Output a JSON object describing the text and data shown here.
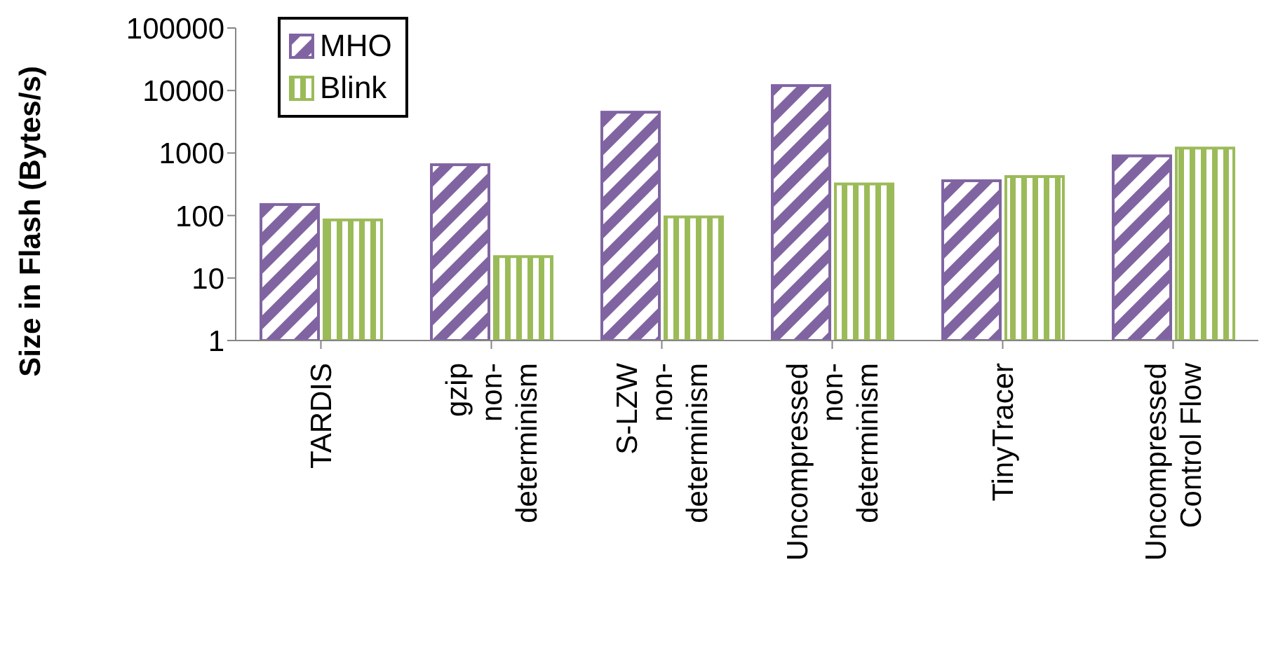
{
  "chart_data": {
    "type": "bar",
    "ylabel": "Size in Flash (Bytes/s)",
    "log": true,
    "ylim": [
      1,
      100000
    ],
    "yticks": [
      1,
      10,
      100,
      1000,
      10000,
      100000
    ],
    "grid": false,
    "legend": "top left",
    "categories": [
      "TARDIS",
      "gzip non-determinism",
      "S-LZW non-determinism",
      "Uncompressed non-determinism",
      "TinyTracer",
      "Uncompressed Control Flow"
    ],
    "series": [
      {
        "name": "MHO",
        "color": "#8064a2",
        "values": [
          150,
          650,
          4500,
          12000,
          360,
          900
        ]
      },
      {
        "name": "Blink",
        "color": "#9bbb59",
        "values": [
          85,
          22,
          95,
          320,
          420,
          1200
        ]
      }
    ]
  }
}
